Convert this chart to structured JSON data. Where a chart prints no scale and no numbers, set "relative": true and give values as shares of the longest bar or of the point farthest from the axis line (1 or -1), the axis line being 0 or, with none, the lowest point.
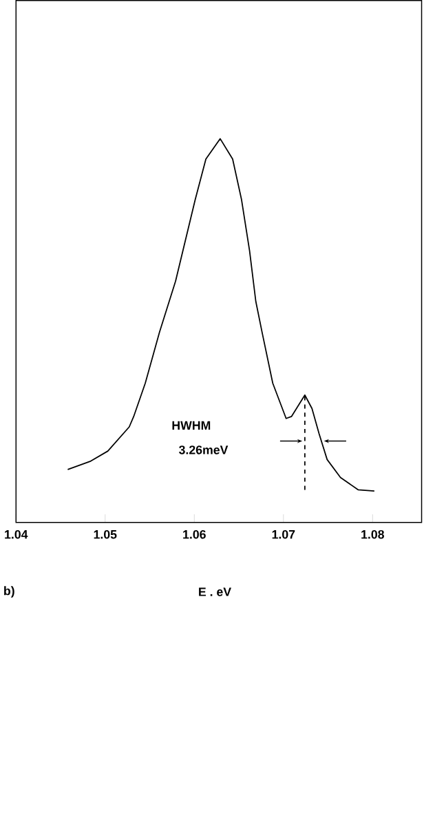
{
  "chart_data": {
    "type": "line",
    "xlabel": "E . eV",
    "xlim": [
      1.04,
      1.0855
    ],
    "xticks": [
      1.04,
      1.05,
      1.06,
      1.07,
      1.08
    ],
    "relative": true,
    "annotations": [
      "HWHM",
      "3.26meV",
      "b)"
    ],
    "series": [
      {
        "color": "#000000",
        "line_style": "solid",
        "x": [
          1.0458,
          1.0483,
          1.0503,
          1.0527,
          1.0532,
          1.0545,
          1.0561,
          1.0579,
          1.0601,
          1.0613,
          1.0629,
          1.0643,
          1.0653,
          1.0662,
          1.0669,
          1.0676,
          1.0688,
          1.0703,
          1.0709,
          1.0724,
          1.0732,
          1.074,
          1.0749,
          1.0764,
          1.0784,
          1.0802
        ],
        "values": [
          0.138,
          0.159,
          0.186,
          0.249,
          0.276,
          0.363,
          0.496,
          0.629,
          0.841,
          0.947,
          1.0,
          0.947,
          0.841,
          0.708,
          0.576,
          0.496,
          0.363,
          0.271,
          0.276,
          0.332,
          0.297,
          0.231,
          0.164,
          0.117,
          0.085,
          0.082
        ]
      },
      {
        "color": "#000000",
        "line_style": "dashed",
        "x": [
          1.0724,
          1.0724
        ],
        "values": [
          0.085,
          0.332
        ]
      }
    ]
  }
}
